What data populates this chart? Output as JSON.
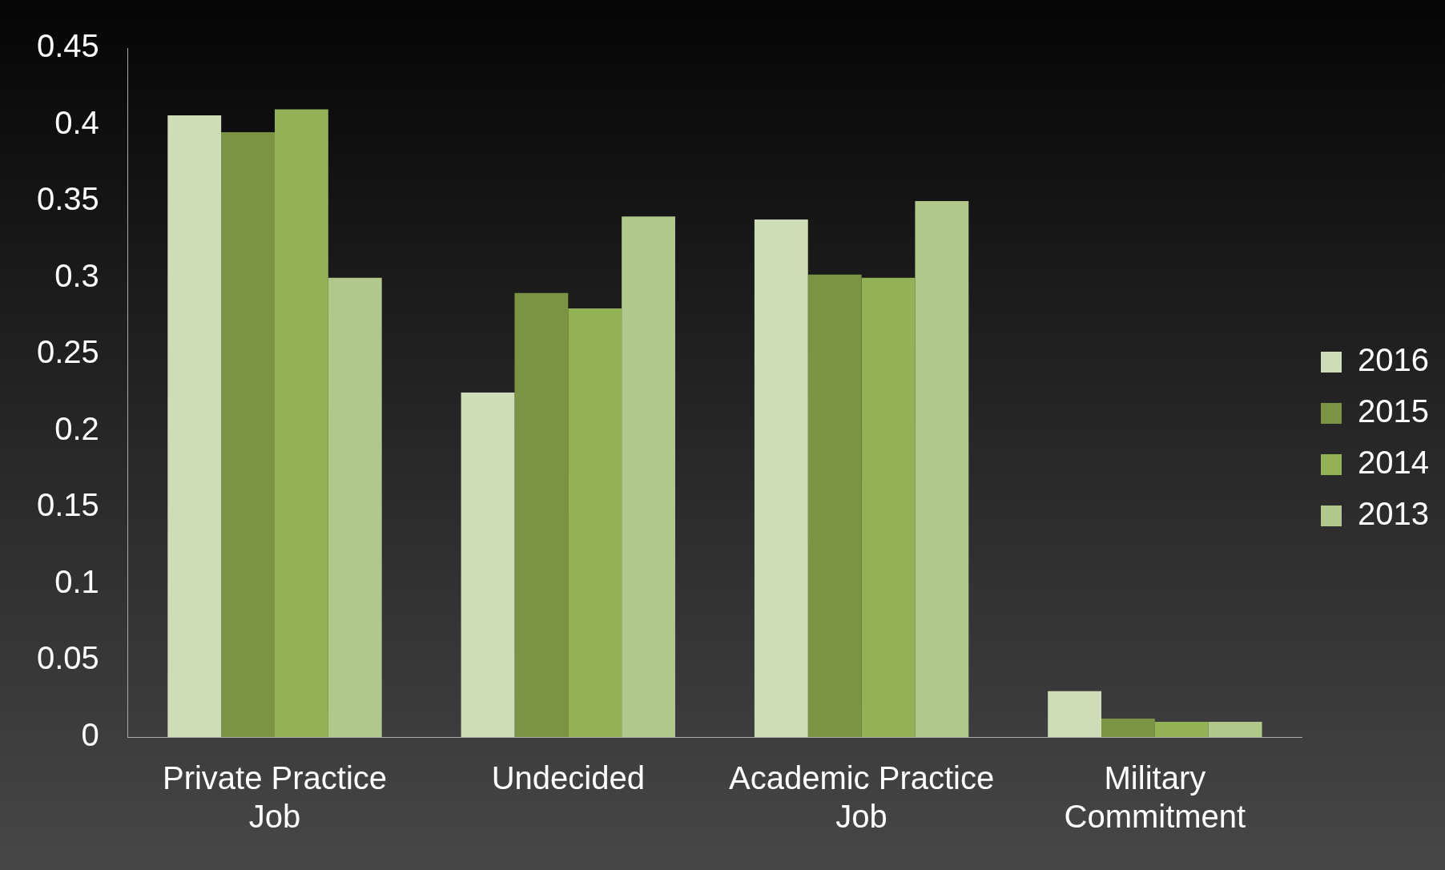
{
  "chart_data": {
    "type": "bar",
    "categories": [
      "Private Practice Job",
      "Undecided",
      "Academic Practice Job",
      "Military Commitment"
    ],
    "series": [
      {
        "name": "2016",
        "color": "#cfdcb8",
        "values": [
          0.406,
          0.225,
          0.338,
          0.03
        ]
      },
      {
        "name": "2015",
        "color": "#7a9444",
        "values": [
          0.395,
          0.29,
          0.302,
          0.012
        ]
      },
      {
        "name": "2014",
        "color": "#93b256",
        "values": [
          0.41,
          0.28,
          0.3,
          0.01
        ]
      },
      {
        "name": "2013",
        "color": "#b0c98a",
        "values": [
          0.3,
          0.34,
          0.35,
          0.01
        ]
      }
    ],
    "ylim": [
      0,
      0.45
    ],
    "yticks": [
      0,
      0.05,
      0.1,
      0.15,
      0.2,
      0.25,
      0.3,
      0.35,
      0.4,
      0.45
    ],
    "grid": false,
    "legend": "right"
  }
}
